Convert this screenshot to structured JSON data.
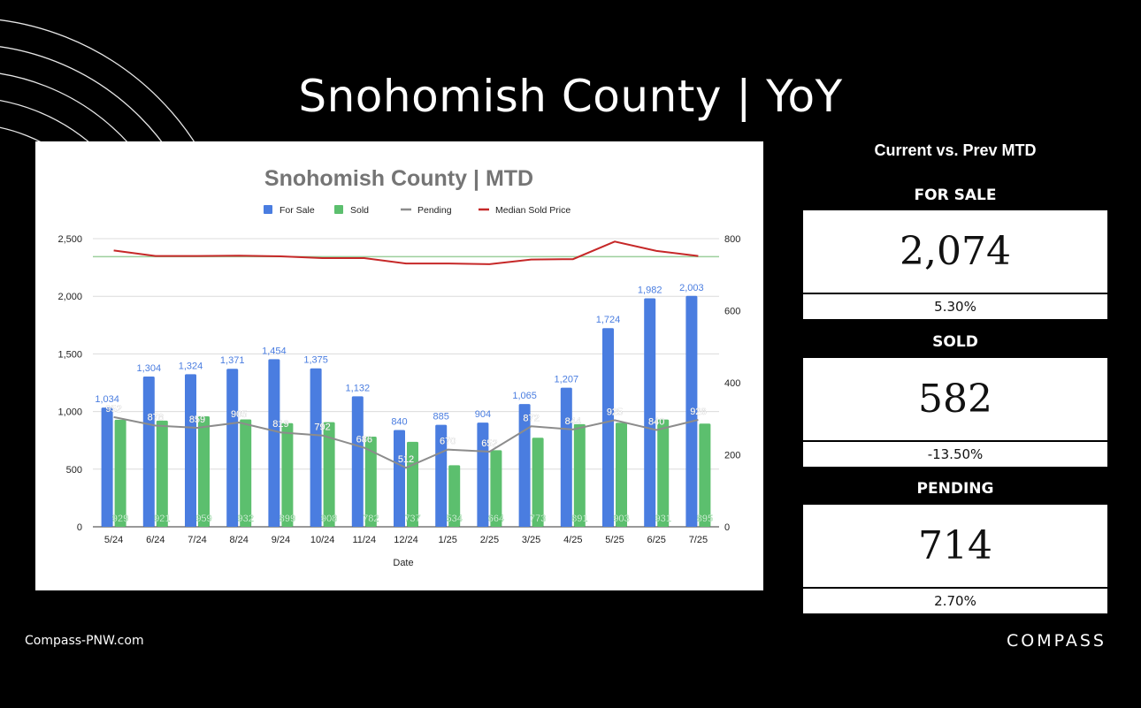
{
  "page": {
    "title": "Snohomish County | YoY",
    "website": "Compass-PNW.com",
    "brand": "COMPASS"
  },
  "summary": {
    "title": "Current vs. Prev MTD",
    "metrics": [
      {
        "label": "FOR SALE",
        "value": "2,074",
        "change": "5.30%"
      },
      {
        "label": "SOLD",
        "value": "582",
        "change": "-13.50%"
      },
      {
        "label": "PENDING",
        "value": "714",
        "change": "2.70%"
      }
    ]
  },
  "colors": {
    "for_sale": "#4a7de0",
    "sold": "#5cbf6e",
    "pending": "#8c8c8c",
    "median": "#c62828",
    "reference": "#9ccf9c"
  },
  "chart_data": {
    "type": "bar",
    "title": "Snohomish County | MTD",
    "xlabel": "Date",
    "ylabel": "",
    "ylim": [
      0,
      2500
    ],
    "y2lim": [
      0,
      800
    ],
    "yticks": [
      "0",
      "500",
      "1,000",
      "1,500",
      "2,000",
      "2,500"
    ],
    "y2ticks": [
      "0",
      "200",
      "400",
      "600",
      "800"
    ],
    "grid": true,
    "legend_position": "top",
    "categories": [
      "5/24",
      "6/24",
      "7/24",
      "8/24",
      "9/24",
      "10/24",
      "11/24",
      "12/24",
      "1/25",
      "2/25",
      "3/25",
      "4/25",
      "5/25",
      "6/25",
      "7/25"
    ],
    "series": [
      {
        "name": "For Sale",
        "type": "bar",
        "axis": "left",
        "values": [
          1034,
          1304,
          1324,
          1371,
          1454,
          1375,
          1132,
          840,
          885,
          904,
          1065,
          1207,
          1724,
          1982,
          2003
        ],
        "labels": [
          "1,034",
          "1,304",
          "1,324",
          "1,371",
          "1,454",
          "1,375",
          "1,132",
          "840",
          "885",
          "904",
          "1,065",
          "1,207",
          "1,724",
          "1,982",
          "2,003"
        ]
      },
      {
        "name": "Sold",
        "type": "bar",
        "axis": "left",
        "values": [
          929,
          921,
          959,
          932,
          899,
          908,
          782,
          737,
          534,
          664,
          773,
          891,
          903,
          931,
          895
        ],
        "labels": [
          "929",
          "921",
          "959",
          "932",
          "899",
          "908",
          "782",
          "737",
          "534",
          "664",
          "773",
          "891",
          "903",
          "931",
          "895"
        ]
      },
      {
        "name": "Pending",
        "type": "line",
        "axis": "left",
        "values": [
          952,
          878,
          859,
          905,
          819,
          792,
          686,
          512,
          670,
          652,
          872,
          844,
          925,
          840,
          928
        ],
        "labels": [
          "952",
          "878",
          "859",
          "905",
          "819",
          "792",
          "686",
          "512",
          "670",
          "652",
          "872",
          "844",
          "925",
          "840",
          "928"
        ]
      },
      {
        "name": "Median Sold Price",
        "type": "line",
        "axis": "right",
        "values": [
          767,
          752,
          752,
          753,
          751,
          746,
          746,
          731,
          731,
          729,
          742,
          743,
          792,
          766,
          752
        ]
      }
    ],
    "reference_line": {
      "axis": "right",
      "value": 750
    }
  }
}
